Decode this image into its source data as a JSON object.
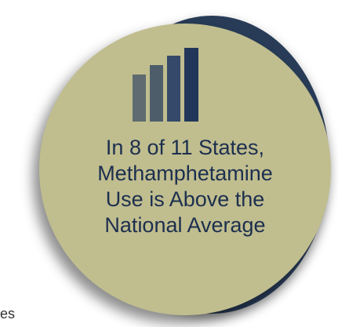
{
  "graphic": {
    "icon": "bar-chart-icon",
    "headline_lines": [
      "In 8 of 11 States,",
      "Methamphetamine",
      "Use is Above the",
      "National Average"
    ],
    "edge_fragment": "es",
    "colors": {
      "badge_fill": "#c0bd8f",
      "back_disc": "#283c57",
      "headline_text": "#1c2f4e",
      "icon_bars": [
        "#5f6b70",
        "#4d5e6a",
        "#35496a",
        "#22365a"
      ]
    }
  }
}
